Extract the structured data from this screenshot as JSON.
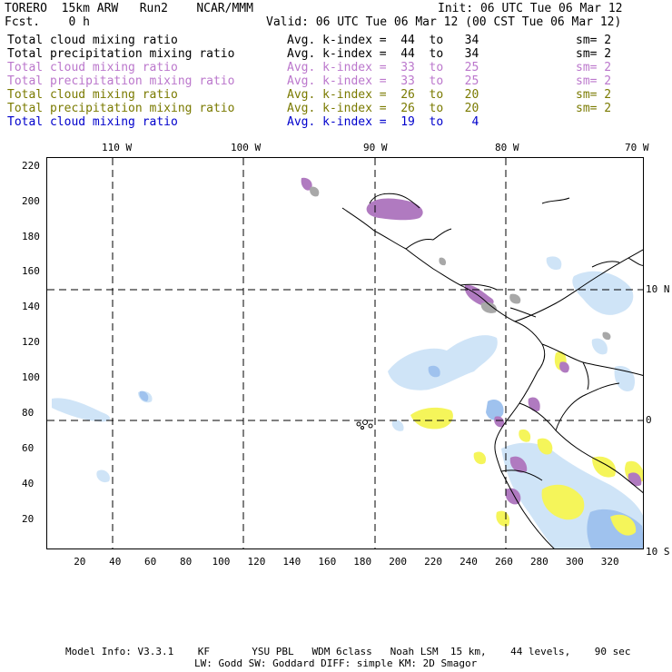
{
  "header": {
    "left1": "TORERO  15km ARW   Run2    NCAR/MMM",
    "left2": "Fcst.    0 h",
    "right1": "Init: 06 UTC Tue 06 Mar 12",
    "right2": "Valid: 06 UTC Tue 06 Mar 12 (00 CST Tue 06 Mar 12)"
  },
  "legend": [
    {
      "field": "Total cloud mixing ratio",
      "range": "Avg. k-index =  44  to   34",
      "sm": "sm= 2",
      "color": "#000000"
    },
    {
      "field": "Total precipitation mixing ratio",
      "range": "Avg. k-index =  44  to   34",
      "sm": "sm= 2",
      "color": "#000000"
    },
    {
      "field": "Total cloud mixing ratio",
      "range": "Avg. k-index =  33  to   25",
      "sm": "sm= 2",
      "color": "#bb77cc"
    },
    {
      "field": "Total precipitation mixing ratio",
      "range": "Avg. k-index =  33  to   25",
      "sm": "sm= 2",
      "color": "#bb77cc"
    },
    {
      "field": "Total cloud mixing ratio",
      "range": "Avg. k-index =  26  to   20",
      "sm": "sm= 2",
      "color": "#7a7a00"
    },
    {
      "field": "Total precipitation mixing ratio",
      "range": "Avg. k-index =  26  to   20",
      "sm": "sm= 2",
      "color": "#7a7a00"
    },
    {
      "field": "Total cloud mixing ratio",
      "range": "Avg. k-index =  19  to    4",
      "sm": "",
      "color": "#0000cc"
    }
  ],
  "map": {
    "lon_labels": [
      "110 W",
      "100 W",
      "90 W",
      "80 W",
      "70 W"
    ],
    "lat_labels": [
      "10 N",
      "0",
      "10 S"
    ],
    "y_ticks": [
      "220",
      "200",
      "180",
      "160",
      "140",
      "120",
      "100",
      "80",
      "60",
      "40",
      "20"
    ],
    "x_ticks": [
      "20",
      "40",
      "60",
      "80",
      "100",
      "120",
      "140",
      "160",
      "180",
      "200",
      "220",
      "240",
      "260",
      "280",
      "300",
      "320"
    ],
    "colors": {
      "gray": "#a8a8a8",
      "purple": "#b07ac0",
      "yellow": "#f5f55a",
      "lightblue": "#cfe4f7",
      "blue": "#9fc2ee"
    }
  },
  "footer": {
    "line1": "Model Info: V3.3.1    KF       YSU PBL   WDM 6class   Noah LSM  15 km,    44 levels,    90 sec",
    "line2": "LW: Godd SW: Goddard DIFF: simple KM: 2D Smagor"
  }
}
